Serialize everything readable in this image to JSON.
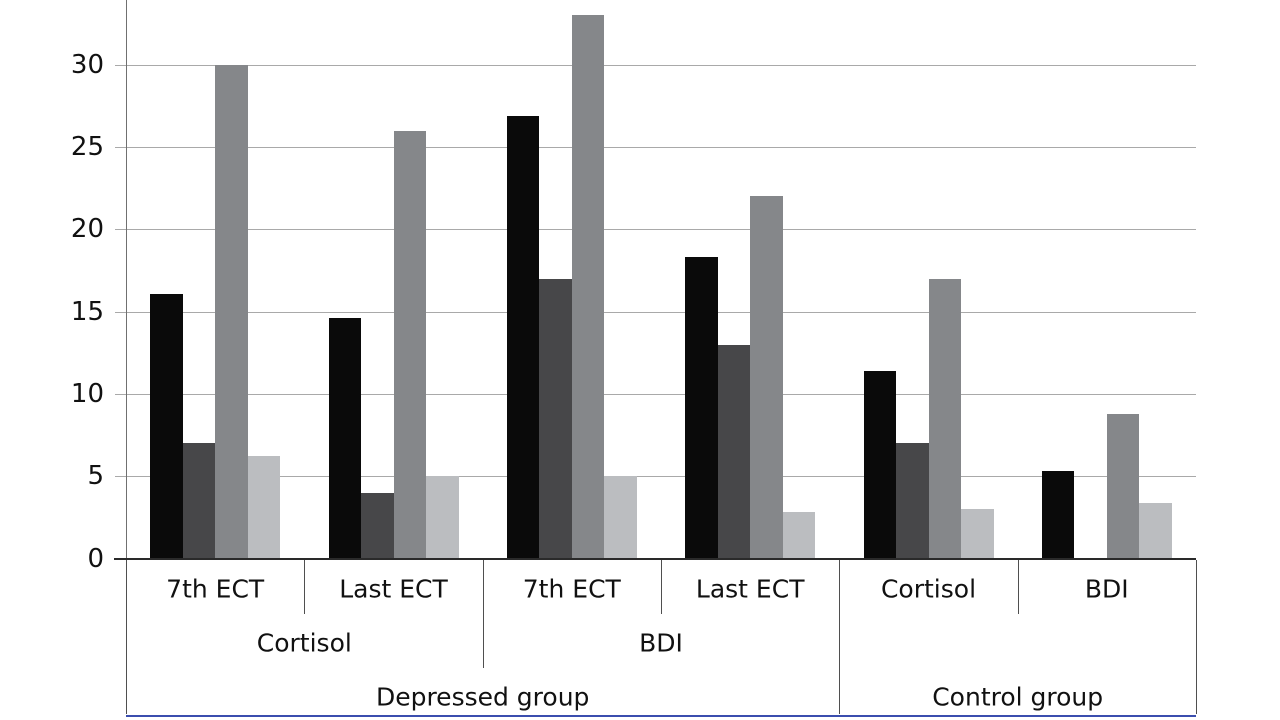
{
  "chart_data": {
    "type": "bar",
    "title": "",
    "legend": "none",
    "grid": true,
    "y_axis": {
      "ticks": [
        0,
        5,
        10,
        15,
        20,
        25,
        30
      ],
      "ylim": [
        0,
        34
      ],
      "label": ""
    },
    "x_hierarchy": {
      "level1": [
        "7th ECT",
        "Last ECT",
        "7th ECT",
        "Last ECT",
        "Cortisol",
        "BDI"
      ],
      "level2": [
        {
          "label": "Cortisol",
          "span": [
            0,
            2
          ]
        },
        {
          "label": "BDI",
          "span": [
            2,
            4
          ]
        }
      ],
      "level3": [
        {
          "label": "Depressed group",
          "span": [
            0,
            4
          ]
        },
        {
          "label": "Control group",
          "span": [
            4,
            6
          ]
        }
      ]
    },
    "series": [
      {
        "name": "series-1-black",
        "color": "#0a0a0a",
        "values": [
          16.1,
          14.6,
          26.9,
          18.3,
          11.4,
          5.3
        ]
      },
      {
        "name": "series-2-dark-gray",
        "color": "#474749",
        "values": [
          7,
          4,
          17,
          13,
          7,
          null
        ]
      },
      {
        "name": "series-3-gray",
        "color": "#85878a",
        "values": [
          30,
          26,
          33,
          22,
          17,
          8.8
        ]
      },
      {
        "name": "series-4-light-gray",
        "color": "#bbbdc0",
        "values": [
          6.2,
          5,
          5,
          2.8,
          3,
          3.4
        ]
      }
    ],
    "colors": {
      "gridline": "#a9a9a9",
      "axis": "#2a2a2a",
      "divider": "#4f4f4f",
      "bottom_rule": "#3b4eae",
      "text": "#111111",
      "background": "#ffffff"
    }
  }
}
